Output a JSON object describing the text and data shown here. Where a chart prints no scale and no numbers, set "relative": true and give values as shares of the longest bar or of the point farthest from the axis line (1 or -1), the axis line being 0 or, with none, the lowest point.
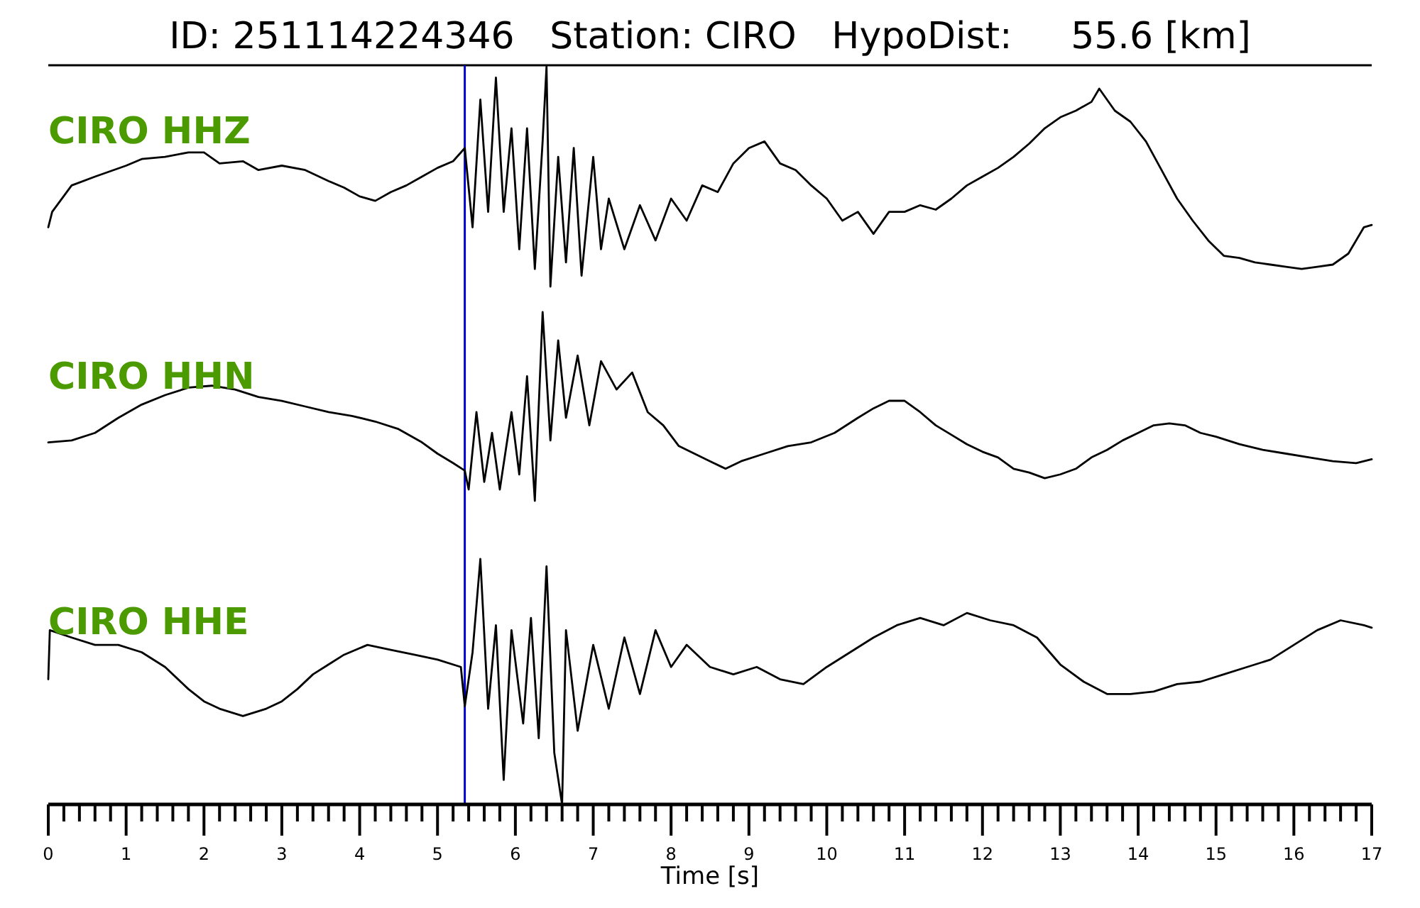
{
  "chart_data": [
    {
      "type": "line",
      "title": "ID: 251114224346   Station: CIRO   HypoDist:     55.6 [km]",
      "relative": true,
      "xlim": [
        0,
        17
      ],
      "tick_labels": false,
      "ref_lines": [
        {
          "axis": "x",
          "value": 5.35,
          "color": "#0000cc"
        }
      ],
      "x": [
        0,
        0.05,
        0.3,
        0.6,
        1.0,
        1.2,
        1.5,
        1.8,
        2.0,
        2.2,
        2.5,
        2.7,
        3.0,
        3.3,
        3.6,
        3.8,
        4.0,
        4.2,
        4.4,
        4.6,
        4.8,
        5.0,
        5.2,
        5.35,
        5.45,
        5.55,
        5.65,
        5.75,
        5.85,
        5.95,
        6.05,
        6.15,
        6.25,
        6.35,
        6.4,
        6.45,
        6.55,
        6.65,
        6.75,
        6.85,
        7.0,
        7.1,
        7.2,
        7.4,
        7.6,
        7.8,
        8.0,
        8.2,
        8.4,
        8.6,
        8.8,
        9.0,
        9.2,
        9.4,
        9.6,
        9.8,
        10.0,
        10.2,
        10.4,
        10.6,
        10.8,
        11.0,
        11.2,
        11.4,
        11.6,
        11.8,
        12.0,
        12.2,
        12.4,
        12.6,
        12.8,
        13.0,
        13.2,
        13.4,
        13.5,
        13.7,
        13.9,
        14.1,
        14.3,
        14.5,
        14.7,
        14.9,
        15.1,
        15.3,
        15.5,
        15.7,
        15.9,
        16.1,
        16.3,
        16.5,
        16.7,
        16.9,
        17
      ],
      "series": [
        {
          "name": "CIRO HHZ",
          "color": "#000000",
          "values": [
            0.27,
            0.34,
            0.46,
            0.5,
            0.55,
            0.58,
            0.59,
            0.61,
            0.61,
            0.56,
            0.57,
            0.53,
            0.55,
            0.53,
            0.48,
            0.45,
            0.41,
            0.39,
            0.43,
            0.46,
            0.5,
            0.54,
            0.57,
            0.63,
            0.27,
            0.85,
            0.34,
            0.95,
            0.34,
            0.72,
            0.17,
            0.72,
            0.08,
            0.66,
            1,
            0,
            0.59,
            0.11,
            0.63,
            0.05,
            0.59,
            0.17,
            0.4,
            0.17,
            0.37,
            0.21,
            0.4,
            0.3,
            0.46,
            0.43,
            0.56,
            0.63,
            0.66,
            0.56,
            0.53,
            0.46,
            0.4,
            0.3,
            0.34,
            0.24,
            0.34,
            0.34,
            0.37,
            0.35,
            0.4,
            0.46,
            0.5,
            0.54,
            0.59,
            0.65,
            0.72,
            0.77,
            0.8,
            0.84,
            0.9,
            0.8,
            0.75,
            0.66,
            0.53,
            0.4,
            0.3,
            0.21,
            0.14,
            0.13,
            0.11,
            0.1,
            0.09,
            0.08,
            0.09,
            0.1,
            0.15,
            0.27,
            0.28
          ]
        }
      ]
    },
    {
      "type": "line",
      "relative": true,
      "xlim": [
        0,
        17
      ],
      "tick_labels": false,
      "ref_lines": [
        {
          "axis": "x",
          "value": 5.35,
          "color": "#0000cc"
        }
      ],
      "x": [
        0,
        0.3,
        0.6,
        0.9,
        1.2,
        1.5,
        1.8,
        2.1,
        2.4,
        2.7,
        3.0,
        3.3,
        3.6,
        3.9,
        4.2,
        4.5,
        4.8,
        5.0,
        5.2,
        5.35,
        5.4,
        5.5,
        5.6,
        5.7,
        5.8,
        5.95,
        6.05,
        6.15,
        6.25,
        6.35,
        6.45,
        6.55,
        6.65,
        6.8,
        6.95,
        7.1,
        7.3,
        7.5,
        7.7,
        7.9,
        8.1,
        8.3,
        8.5,
        8.7,
        8.9,
        9.2,
        9.5,
        9.8,
        10.1,
        10.4,
        10.6,
        10.8,
        11.0,
        11.2,
        11.4,
        11.6,
        11.8,
        12.0,
        12.2,
        12.4,
        12.6,
        12.8,
        13.0,
        13.2,
        13.4,
        13.6,
        13.8,
        14.0,
        14.2,
        14.4,
        14.6,
        14.8,
        15.0,
        15.3,
        15.6,
        15.9,
        16.2,
        16.5,
        16.8,
        17
      ],
      "series": [
        {
          "name": "CIRO HHN",
          "color": "#000000",
          "values": [
            0.31,
            0.32,
            0.36,
            0.44,
            0.51,
            0.56,
            0.6,
            0.61,
            0.59,
            0.55,
            0.53,
            0.5,
            0.47,
            0.45,
            0.42,
            0.38,
            0.31,
            0.25,
            0.2,
            0.16,
            0.06,
            0.47,
            0.1,
            0.36,
            0.06,
            0.47,
            0.14,
            0.66,
            0,
            1,
            0.32,
            0.85,
            0.44,
            0.77,
            0.4,
            0.74,
            0.59,
            0.68,
            0.47,
            0.4,
            0.29,
            0.25,
            0.21,
            0.17,
            0.21,
            0.25,
            0.29,
            0.31,
            0.36,
            0.44,
            0.49,
            0.53,
            0.53,
            0.47,
            0.4,
            0.35,
            0.3,
            0.26,
            0.23,
            0.17,
            0.15,
            0.12,
            0.14,
            0.17,
            0.23,
            0.27,
            0.32,
            0.36,
            0.4,
            0.41,
            0.4,
            0.36,
            0.34,
            0.3,
            0.27,
            0.25,
            0.23,
            0.21,
            0.2,
            0.22
          ]
        }
      ]
    },
    {
      "type": "line",
      "relative": true,
      "xlim": [
        0,
        17
      ],
      "tick_labels": "x",
      "xlabel": "Time [s]",
      "xticks": [
        0,
        {
          "value": 0.2,
          "label": null
        },
        {
          "value": 0.4,
          "label": null
        },
        {
          "value": 0.6,
          "label": null
        },
        {
          "value": 0.8,
          "label": null
        },
        1,
        {
          "value": 1.2,
          "label": null
        },
        {
          "value": 1.4,
          "label": null
        },
        {
          "value": 1.6,
          "label": null
        },
        {
          "value": 1.8,
          "label": null
        },
        2,
        {
          "value": 2.2,
          "label": null
        },
        {
          "value": 2.4,
          "label": null
        },
        {
          "value": 2.6,
          "label": null
        },
        {
          "value": 2.8,
          "label": null
        },
        3,
        {
          "value": 3.2,
          "label": null
        },
        {
          "value": 3.4,
          "label": null
        },
        {
          "value": 3.6,
          "label": null
        },
        {
          "value": 3.8,
          "label": null
        },
        4,
        {
          "value": 4.2,
          "label": null
        },
        {
          "value": 4.4,
          "label": null
        },
        {
          "value": 4.6,
          "label": null
        },
        {
          "value": 4.8,
          "label": null
        },
        5,
        {
          "value": 5.2,
          "label": null
        },
        {
          "value": 5.4,
          "label": null
        },
        {
          "value": 5.6,
          "label": null
        },
        {
          "value": 5.8,
          "label": null
        },
        6,
        {
          "value": 6.2,
          "label": null
        },
        {
          "value": 6.4,
          "label": null
        },
        {
          "value": 6.6,
          "label": null
        },
        {
          "value": 6.8,
          "label": null
        },
        7,
        {
          "value": 7.2,
          "label": null
        },
        {
          "value": 7.4,
          "label": null
        },
        {
          "value": 7.6,
          "label": null
        },
        {
          "value": 7.8,
          "label": null
        },
        8,
        {
          "value": 8.2,
          "label": null
        },
        {
          "value": 8.4,
          "label": null
        },
        {
          "value": 8.6,
          "label": null
        },
        {
          "value": 8.8,
          "label": null
        },
        9,
        {
          "value": 9.2,
          "label": null
        },
        {
          "value": 9.4,
          "label": null
        },
        {
          "value": 9.6,
          "label": null
        },
        {
          "value": 9.8,
          "label": null
        },
        10,
        {
          "value": 10.2,
          "label": null
        },
        {
          "value": 10.4,
          "label": null
        },
        {
          "value": 10.6,
          "label": null
        },
        {
          "value": 10.8,
          "label": null
        },
        11,
        {
          "value": 11.2,
          "label": null
        },
        {
          "value": 11.4,
          "label": null
        },
        {
          "value": 11.6,
          "label": null
        },
        {
          "value": 11.8,
          "label": null
        },
        12,
        {
          "value": 12.2,
          "label": null
        },
        {
          "value": 12.4,
          "label": null
        },
        {
          "value": 12.6,
          "label": null
        },
        {
          "value": 12.8,
          "label": null
        },
        13,
        {
          "value": 13.2,
          "label": null
        },
        {
          "value": 13.4,
          "label": null
        },
        {
          "value": 13.6,
          "label": null
        },
        {
          "value": 13.8,
          "label": null
        },
        14,
        {
          "value": 14.2,
          "label": null
        },
        {
          "value": 14.4,
          "label": null
        },
        {
          "value": 14.6,
          "label": null
        },
        {
          "value": 14.8,
          "label": null
        },
        15,
        {
          "value": 15.2,
          "label": null
        },
        {
          "value": 15.4,
          "label": null
        },
        {
          "value": 15.6,
          "label": null
        },
        {
          "value": 15.8,
          "label": null
        },
        16,
        {
          "value": 16.2,
          "label": null
        },
        {
          "value": 16.4,
          "label": null
        },
        {
          "value": 16.6,
          "label": null
        },
        {
          "value": 16.8,
          "label": null
        },
        17
      ],
      "ref_lines": [
        {
          "axis": "x",
          "value": 5.35,
          "color": "#0000cc"
        }
      ],
      "x": [
        0,
        0.02,
        0.3,
        0.6,
        0.9,
        1.2,
        1.5,
        1.8,
        2.0,
        2.2,
        2.5,
        2.8,
        3.0,
        3.2,
        3.4,
        3.6,
        3.8,
        4.1,
        4.4,
        4.7,
        5.0,
        5.3,
        5.35,
        5.45,
        5.55,
        5.65,
        5.75,
        5.85,
        5.95,
        6.1,
        6.2,
        6.3,
        6.4,
        6.5,
        6.6,
        6.65,
        6.8,
        7.0,
        7.2,
        7.4,
        7.6,
        7.8,
        8.0,
        8.2,
        8.5,
        8.8,
        9.1,
        9.4,
        9.7,
        10.0,
        10.3,
        10.6,
        10.9,
        11.2,
        11.5,
        11.8,
        12.1,
        12.4,
        12.7,
        13.0,
        13.3,
        13.6,
        13.9,
        14.2,
        14.5,
        14.8,
        15.1,
        15.4,
        15.7,
        16.0,
        16.3,
        16.6,
        16.9,
        17
      ],
      "series": [
        {
          "name": "CIRO HHE",
          "color": "#000000",
          "values": [
            0.51,
            0.71,
            0.68,
            0.65,
            0.65,
            0.62,
            0.56,
            0.47,
            0.42,
            0.39,
            0.36,
            0.39,
            0.42,
            0.47,
            0.53,
            0.57,
            0.61,
            0.65,
            0.63,
            0.61,
            0.59,
            0.56,
            0.4,
            0.62,
            1,
            0.39,
            0.73,
            0.1,
            0.71,
            0.33,
            0.76,
            0.27,
            0.97,
            0.21,
            0,
            0.71,
            0.3,
            0.65,
            0.39,
            0.68,
            0.45,
            0.71,
            0.56,
            0.65,
            0.56,
            0.53,
            0.56,
            0.51,
            0.49,
            0.56,
            0.62,
            0.68,
            0.73,
            0.76,
            0.73,
            0.78,
            0.75,
            0.73,
            0.68,
            0.57,
            0.5,
            0.45,
            0.45,
            0.46,
            0.49,
            0.5,
            0.53,
            0.56,
            0.59,
            0.65,
            0.71,
            0.75,
            0.73,
            0.72
          ]
        }
      ]
    }
  ]
}
